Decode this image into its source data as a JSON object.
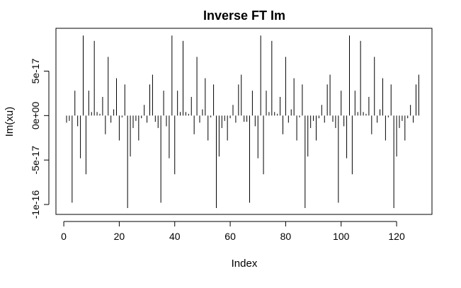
{
  "chart_data": {
    "type": "bar",
    "style": "histogram-type vertical lines (R plot type='h')",
    "title": "Inverse FT Im",
    "xlabel": "Index",
    "ylabel": "Im(xu)",
    "xlim": [
      1,
      128
    ],
    "ylim": [
      -1.1e-16,
      9e-17
    ],
    "x_ticks": [
      0,
      20,
      40,
      60,
      80,
      100,
      120
    ],
    "x_tick_labels": [
      "0",
      "20",
      "40",
      "60",
      "80",
      "100",
      "120"
    ],
    "y_ticks": [
      -1e-16,
      -5e-17,
      0,
      5e-17
    ],
    "y_tick_labels": [
      "-1e-16",
      "-5e-17",
      "0e+00",
      "5e-17"
    ],
    "grid": false,
    "legend": "none",
    "line_color": "#000000",
    "x": [
      1,
      2,
      3,
      4,
      5,
      6,
      7,
      8,
      9,
      10,
      11,
      12,
      13,
      14,
      15,
      16,
      17,
      18,
      19,
      20,
      21,
      22,
      23,
      24,
      25,
      26,
      27,
      28,
      29,
      30,
      31,
      32,
      33,
      34,
      35,
      36,
      37,
      38,
      39,
      40,
      41,
      42,
      43,
      44,
      45,
      46,
      47,
      48,
      49,
      50,
      51,
      52,
      53,
      54,
      55,
      56,
      57,
      58,
      59,
      60,
      61,
      62,
      63,
      64,
      65,
      66,
      67,
      68,
      69,
      70,
      71,
      72,
      73,
      74,
      75,
      76,
      77,
      78,
      79,
      80,
      81,
      82,
      83,
      84,
      85,
      86,
      87,
      88,
      89,
      90,
      91,
      92,
      93,
      94,
      95,
      96,
      97,
      98,
      99,
      100,
      101,
      102,
      103,
      104,
      105,
      106,
      107,
      108,
      109,
      110,
      111,
      112,
      113,
      114,
      115,
      116,
      117,
      118,
      119,
      120,
      121,
      122,
      123,
      124,
      125,
      126,
      127,
      128
    ],
    "values": [
      -8e-18,
      -6e-18,
      -9.8e-17,
      2.8e-17,
      -1.2e-17,
      -4.8e-17,
      9e-17,
      -6.6e-17,
      2.8e-17,
      4e-18,
      8.4e-17,
      4e-18,
      2e-18,
      2.1e-17,
      -2.1e-17,
      6.6e-17,
      -8e-18,
      7e-18,
      4.2e-17,
      -2.8e-17,
      -2e-18,
      3.5e-17,
      -1.04e-16,
      -4.6e-17,
      -1.4e-17,
      -6e-18,
      -2.8e-17,
      -3e-18,
      1.2e-17,
      -8e-18,
      3.5e-17,
      4.6e-17,
      -7e-18,
      -1.4e-17,
      -9.8e-17,
      2.8e-17,
      -1.2e-17,
      -4.8e-17,
      9e-17,
      -6.6e-17,
      2.8e-17,
      4e-18,
      8.4e-17,
      4e-18,
      2e-18,
      2.1e-17,
      -2.1e-17,
      6.6e-17,
      -8e-18,
      7e-18,
      4.2e-17,
      -2.8e-17,
      -2e-18,
      3.5e-17,
      -1.04e-16,
      -4.6e-17,
      -1.4e-17,
      -6e-18,
      -2.8e-17,
      -3e-18,
      1.2e-17,
      -8e-18,
      3.5e-17,
      4.6e-17,
      -7e-18,
      -7e-18,
      -9.8e-17,
      2.8e-17,
      -1.2e-17,
      -4.8e-17,
      9e-17,
      -6.6e-17,
      2.8e-17,
      4e-18,
      8.4e-17,
      4e-18,
      2e-18,
      2.1e-17,
      -2.1e-17,
      6.6e-17,
      -8e-18,
      7e-18,
      4.2e-17,
      -2.8e-17,
      -2e-18,
      3.5e-17,
      -1.04e-16,
      -4.6e-17,
      -1.4e-17,
      -6e-18,
      -2.8e-17,
      -3e-18,
      1.2e-17,
      -8e-18,
      3.5e-17,
      4.6e-17,
      -7e-18,
      -1.4e-17,
      -9.8e-17,
      2.8e-17,
      -1.2e-17,
      -4.8e-17,
      9e-17,
      -6.6e-17,
      2.8e-17,
      4e-18,
      8.4e-17,
      4e-18,
      2e-18,
      2.1e-17,
      -2.1e-17,
      6.6e-17,
      -8e-18,
      7e-18,
      4.2e-17,
      -2.8e-17,
      -2e-18,
      3.5e-17,
      -1.04e-16,
      -4.6e-17,
      -1.4e-17,
      -6e-18,
      -2.8e-17,
      -3e-18,
      1.2e-17,
      -8e-18,
      3.5e-17,
      4.6e-17
    ]
  }
}
